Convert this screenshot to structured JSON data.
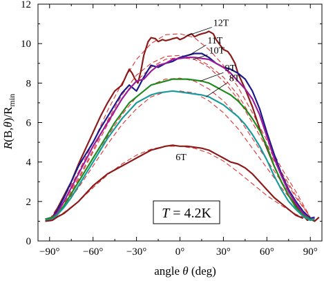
{
  "chart_data": {
    "type": "line",
    "xlabel_prefix": "angle ",
    "xlabel_symbol": "θ",
    "xlabel_suffix": " (deg)",
    "ylabel_R": "R",
    "ylabel_args": "(B,",
    "ylabel_theta": "θ",
    "ylabel_rest": ")/R",
    "ylabel_sub": "min",
    "xlim": [
      -98,
      98
    ],
    "ylim": [
      0,
      12
    ],
    "xticks": [
      -90,
      -60,
      -30,
      0,
      30,
      60,
      90
    ],
    "xtick_labels": [
      "−90°",
      "−60°",
      "−30°",
      "0°",
      "30°",
      "60°",
      "90°"
    ],
    "yticks": [
      0,
      2,
      4,
      6,
      8,
      10,
      12
    ],
    "ytick_labels": [
      "0",
      "2",
      "4",
      "6",
      "8",
      "10",
      "12"
    ],
    "annotation": {
      "italic": "T",
      "rest": " = 4.2K"
    },
    "series": [
      {
        "name": "12T",
        "color": "#8b1a1a",
        "label_x": 23,
        "label_y": 10.9,
        "leader_to": [
          5,
          10.4
        ],
        "x": [
          -93,
          -88,
          -85,
          -80,
          -75,
          -70,
          -65,
          -60,
          -55,
          -50,
          -45,
          -40,
          -37,
          -35,
          -33,
          -31,
          -29,
          -27,
          -25,
          -22,
          -20,
          -17,
          -15,
          -12,
          -10,
          -7,
          -5,
          -2,
          0,
          3,
          5,
          8,
          10,
          13,
          15,
          18,
          20,
          23,
          25,
          28,
          30,
          33,
          35,
          38,
          40,
          45,
          50,
          55,
          60,
          65,
          70,
          75,
          80,
          85,
          88,
          90,
          93,
          96
        ],
        "values": [
          1.1,
          1.2,
          1.6,
          2.3,
          3.0,
          3.9,
          4.7,
          5.5,
          6.3,
          7.0,
          7.6,
          7.9,
          8.4,
          8.7,
          8.5,
          8.2,
          8.0,
          8.6,
          9.4,
          10.1,
          10.3,
          10.25,
          10.1,
          10.2,
          10.15,
          10.2,
          10.25,
          10.3,
          10.2,
          10.3,
          10.4,
          10.5,
          10.35,
          10.45,
          10.5,
          10.55,
          10.62,
          10.5,
          10.2,
          9.9,
          9.7,
          9.6,
          9.4,
          9.0,
          8.5,
          7.7,
          6.8,
          5.7,
          4.7,
          3.8,
          3.0,
          2.3,
          1.8,
          1.3,
          1.05,
          1.1,
          1.0,
          1.2
        ],
        "fit_x": [
          -90,
          -80,
          -70,
          -60,
          -50,
          -40,
          -30,
          -20,
          -10,
          0,
          10,
          20,
          30,
          40,
          50,
          60,
          70,
          80,
          90
        ],
        "fit_values": [
          1.1,
          2.2,
          3.5,
          5.0,
          6.6,
          8.0,
          9.2,
          10.0,
          10.45,
          10.5,
          10.3,
          9.7,
          8.9,
          7.8,
          6.5,
          5.1,
          3.7,
          2.5,
          1.2
        ]
      },
      {
        "name": "11T",
        "color": "#1a1a8c",
        "label_x": 19,
        "label_y": 10.0,
        "leader_to": [
          6,
          9.4
        ],
        "x": [
          -93,
          -88,
          -85,
          -80,
          -75,
          -70,
          -65,
          -60,
          -55,
          -50,
          -45,
          -40,
          -35,
          -30,
          -25,
          -20,
          -15,
          -10,
          -5,
          0,
          5,
          10,
          15,
          20,
          25,
          30,
          35,
          40,
          45,
          50,
          55,
          60,
          65,
          70,
          75,
          80,
          85,
          90,
          93
        ],
        "values": [
          1.1,
          1.2,
          1.5,
          2.2,
          3.0,
          3.8,
          4.4,
          5.0,
          5.7,
          6.3,
          6.9,
          7.5,
          7.9,
          7.6,
          8.3,
          8.9,
          8.8,
          9.0,
          9.1,
          9.3,
          9.4,
          9.5,
          9.5,
          9.3,
          9.0,
          8.8,
          8.7,
          8.5,
          8.2,
          7.6,
          6.7,
          5.5,
          4.4,
          3.4,
          2.6,
          2.0,
          1.5,
          1.15,
          1.2
        ],
        "fit_x": [
          -90,
          -80,
          -70,
          -60,
          -50,
          -40,
          -30,
          -20,
          -10,
          0,
          10,
          20,
          30,
          40,
          50,
          60,
          70,
          80,
          90
        ],
        "fit_values": [
          1.1,
          2.0,
          3.2,
          4.6,
          6.1,
          7.4,
          8.4,
          9.0,
          9.35,
          9.4,
          9.3,
          8.9,
          8.3,
          7.4,
          6.2,
          4.9,
          3.5,
          2.3,
          1.2
        ]
      },
      {
        "name": "10T",
        "color": "#9b1b9b",
        "label_x": 20,
        "label_y": 9.5,
        "leader_to": [
          9,
          9.2
        ],
        "x": [
          -93,
          -88,
          -85,
          -80,
          -75,
          -70,
          -65,
          -60,
          -55,
          -50,
          -45,
          -40,
          -35,
          -30,
          -25,
          -20,
          -15,
          -10,
          -5,
          0,
          5,
          10,
          15,
          20,
          25,
          30,
          35,
          40,
          45,
          50,
          55,
          60,
          65,
          70,
          75,
          80,
          85,
          90,
          93
        ],
        "values": [
          1.1,
          1.2,
          1.4,
          2.0,
          2.7,
          3.4,
          4.1,
          4.8,
          5.4,
          6.0,
          6.6,
          7.2,
          7.7,
          8.1,
          8.2,
          8.6,
          8.9,
          9.0,
          9.2,
          9.25,
          9.3,
          9.3,
          9.25,
          9.2,
          9.0,
          8.8,
          8.5,
          8.1,
          7.7,
          7.2,
          6.4,
          5.3,
          4.2,
          3.3,
          2.5,
          1.9,
          1.4,
          1.1,
          1.15
        ],
        "fit_x": [
          -90,
          -80,
          -70,
          -60,
          -50,
          -40,
          -30,
          -20,
          -10,
          0,
          10,
          20,
          30,
          40,
          50,
          60,
          70,
          80,
          90
        ],
        "fit_values": [
          1.1,
          1.9,
          3.1,
          4.5,
          5.9,
          7.2,
          8.1,
          8.8,
          9.2,
          9.3,
          9.2,
          8.8,
          8.1,
          7.2,
          6.0,
          4.7,
          3.4,
          2.2,
          1.2
        ]
      },
      {
        "name": "9T",
        "color": "#1f8b1f",
        "label_x": 31,
        "label_y": 8.6,
        "leader_to": [
          14,
          8.1
        ],
        "x": [
          -93,
          -88,
          -85,
          -80,
          -75,
          -70,
          -65,
          -60,
          -55,
          -50,
          -45,
          -40,
          -35,
          -30,
          -25,
          -20,
          -15,
          -10,
          -5,
          0,
          5,
          10,
          15,
          20,
          25,
          30,
          35,
          40,
          45,
          50,
          55,
          60,
          65,
          70,
          75,
          80,
          85,
          90,
          93
        ],
        "values": [
          1.1,
          1.2,
          1.3,
          1.8,
          2.4,
          3.0,
          3.6,
          4.2,
          4.8,
          5.4,
          6.0,
          6.5,
          7.0,
          7.3,
          7.6,
          7.9,
          8.0,
          8.1,
          8.2,
          8.2,
          8.2,
          8.15,
          8.1,
          8.0,
          7.8,
          7.6,
          7.4,
          7.1,
          6.7,
          6.2,
          5.6,
          4.8,
          3.8,
          3.0,
          2.3,
          1.7,
          1.3,
          1.1,
          1.1
        ],
        "fit_x": [
          -90,
          -80,
          -70,
          -60,
          -50,
          -40,
          -30,
          -20,
          -10,
          0,
          10,
          20,
          30,
          40,
          50,
          60,
          70,
          80,
          90
        ],
        "fit_values": [
          1.1,
          1.8,
          2.8,
          4.0,
          5.3,
          6.4,
          7.3,
          7.9,
          8.2,
          8.25,
          8.1,
          7.7,
          7.1,
          6.3,
          5.2,
          4.1,
          3.0,
          2.0,
          1.1
        ]
      },
      {
        "name": "8T",
        "color": "#1a9b9b",
        "label_x": 34,
        "label_y": 8.1,
        "leader_to": [
          18,
          7.3
        ],
        "x": [
          -93,
          -88,
          -85,
          -80,
          -75,
          -70,
          -65,
          -60,
          -55,
          -50,
          -45,
          -40,
          -35,
          -30,
          -25,
          -20,
          -15,
          -10,
          -5,
          0,
          5,
          10,
          15,
          20,
          25,
          30,
          35,
          40,
          45,
          50,
          55,
          60,
          65,
          70,
          75,
          80,
          85,
          90,
          93
        ],
        "values": [
          1.05,
          1.1,
          1.3,
          1.7,
          2.2,
          2.8,
          3.4,
          4.0,
          4.6,
          5.2,
          5.7,
          6.2,
          6.6,
          7.0,
          7.2,
          7.4,
          7.5,
          7.55,
          7.6,
          7.55,
          7.5,
          7.45,
          7.4,
          7.3,
          7.1,
          6.9,
          6.6,
          6.3,
          5.9,
          5.4,
          4.8,
          4.1,
          3.3,
          2.6,
          2.0,
          1.6,
          1.25,
          1.05,
          1.1
        ],
        "fit_x": [
          -90,
          -80,
          -70,
          -60,
          -50,
          -40,
          -30,
          -20,
          -10,
          0,
          10,
          20,
          30,
          40,
          50,
          60,
          70,
          80,
          90
        ],
        "fit_values": [
          1.05,
          1.7,
          2.7,
          3.8,
          4.9,
          5.9,
          6.7,
          7.3,
          7.55,
          7.6,
          7.5,
          7.1,
          6.5,
          5.7,
          4.7,
          3.7,
          2.7,
          1.8,
          1.1
        ]
      },
      {
        "name": "6T",
        "color": "#8b1a1a",
        "label_x": -3,
        "label_y": 4.1,
        "leader_to": null,
        "x": [
          -93,
          -88,
          -85,
          -80,
          -75,
          -70,
          -65,
          -60,
          -55,
          -50,
          -45,
          -40,
          -35,
          -30,
          -25,
          -20,
          -15,
          -10,
          -5,
          0,
          5,
          10,
          15,
          20,
          25,
          30,
          35,
          40,
          45,
          50,
          55,
          60,
          65,
          70,
          75,
          80,
          85
        ],
        "values": [
          1.0,
          1.05,
          1.2,
          1.4,
          1.7,
          2.0,
          2.4,
          2.8,
          3.1,
          3.4,
          3.6,
          3.8,
          4.0,
          4.2,
          4.4,
          4.6,
          4.7,
          4.8,
          4.85,
          4.8,
          4.8,
          4.75,
          4.7,
          4.6,
          4.4,
          4.2,
          4.0,
          3.9,
          3.7,
          3.4,
          3.0,
          2.6,
          2.2,
          1.9,
          1.6,
          1.3,
          1.15
        ],
        "fit_x": [
          -90,
          -80,
          -70,
          -60,
          -50,
          -40,
          -30,
          -20,
          -10,
          0,
          10,
          20,
          30,
          40,
          50,
          60,
          70,
          80,
          90
        ],
        "fit_values": [
          1.0,
          1.45,
          2.0,
          2.7,
          3.35,
          3.9,
          4.35,
          4.65,
          4.8,
          4.8,
          4.7,
          4.45,
          4.05,
          3.5,
          2.9,
          2.3,
          1.8,
          1.35,
          1.05
        ]
      }
    ]
  }
}
